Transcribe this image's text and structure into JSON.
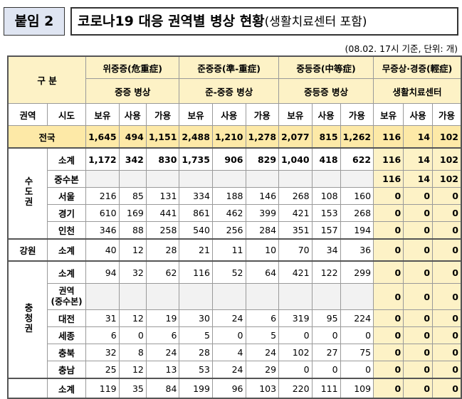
{
  "header": {
    "annex_label": "붙임 2",
    "title_main": "코로나19 대응 권역별 병상 현황",
    "title_sub": "(생활치료센터 포함)",
    "note": "(08.02. 17시 기준, 단위: 개)"
  },
  "table": {
    "gubun": "구 분",
    "groups": [
      {
        "name": "위중증(危重症)",
        "sub": "중증 병상"
      },
      {
        "name": "준중증(準-重症)",
        "sub": "준-중증 병상"
      },
      {
        "name": "중등증(中等症)",
        "sub": "중등증 병상"
      },
      {
        "name": "무증상·경증(輕症)",
        "sub": "생활치료센터"
      }
    ],
    "col_region": "권역",
    "col_sido": "시도",
    "col_labels": [
      "보유",
      "사용",
      "가용"
    ],
    "national": {
      "label": "전국",
      "values": [
        "1,645",
        "494",
        "1,151",
        "2,488",
        "1,210",
        "1,278",
        "2,077",
        "815",
        "1,262",
        "116",
        "14",
        "102"
      ]
    },
    "sudogwon": {
      "region": "수도권",
      "rows": [
        {
          "name": "소계",
          "values": [
            "1,172",
            "342",
            "830",
            "1,735",
            "906",
            "829",
            "1,040",
            "418",
            "622",
            "116",
            "14",
            "102"
          ]
        },
        {
          "name": "중수본",
          "values": [
            "",
            "",
            "",
            "",
            "",
            "",
            "",
            "",
            "",
            "116",
            "14",
            "102"
          ]
        },
        {
          "name": "서울",
          "values": [
            "216",
            "85",
            "131",
            "334",
            "188",
            "146",
            "268",
            "108",
            "160",
            "0",
            "0",
            "0"
          ]
        },
        {
          "name": "경기",
          "values": [
            "610",
            "169",
            "441",
            "861",
            "462",
            "399",
            "421",
            "153",
            "268",
            "0",
            "0",
            "0"
          ]
        },
        {
          "name": "인천",
          "values": [
            "346",
            "88",
            "258",
            "540",
            "256",
            "284",
            "351",
            "157",
            "194",
            "0",
            "0",
            "0"
          ]
        }
      ]
    },
    "gangwon": {
      "region": "강원",
      "row": {
        "name": "소계",
        "values": [
          "40",
          "12",
          "28",
          "21",
          "11",
          "10",
          "70",
          "34",
          "36",
          "0",
          "0",
          "0"
        ]
      }
    },
    "chungcheong": {
      "region": "충청권",
      "rows": [
        {
          "name": "소계",
          "values": [
            "94",
            "32",
            "62",
            "116",
            "52",
            "64",
            "421",
            "122",
            "299",
            "0",
            "0",
            "0"
          ]
        },
        {
          "name": "권역\n(중수본)",
          "values": [
            "",
            "",
            "",
            "",
            "",
            "",
            "",
            "",
            "",
            "0",
            "0",
            "0"
          ]
        },
        {
          "name": "대전",
          "values": [
            "31",
            "12",
            "19",
            "30",
            "24",
            "6",
            "319",
            "95",
            "224",
            "0",
            "0",
            "0"
          ]
        },
        {
          "name": "세종",
          "values": [
            "6",
            "0",
            "6",
            "5",
            "0",
            "5",
            "0",
            "0",
            "0",
            "0",
            "0",
            "0"
          ]
        },
        {
          "name": "충북",
          "values": [
            "32",
            "8",
            "24",
            "28",
            "4",
            "24",
            "102",
            "27",
            "75",
            "0",
            "0",
            "0"
          ]
        },
        {
          "name": "충남",
          "values": [
            "25",
            "12",
            "13",
            "53",
            "24",
            "29",
            "0",
            "0",
            "0",
            "0",
            "0",
            "0"
          ]
        }
      ]
    },
    "next_row": {
      "name": "소계",
      "values": [
        "119",
        "35",
        "84",
        "199",
        "96",
        "103",
        "220",
        "111",
        "109",
        "0",
        "0",
        "0"
      ]
    }
  }
}
